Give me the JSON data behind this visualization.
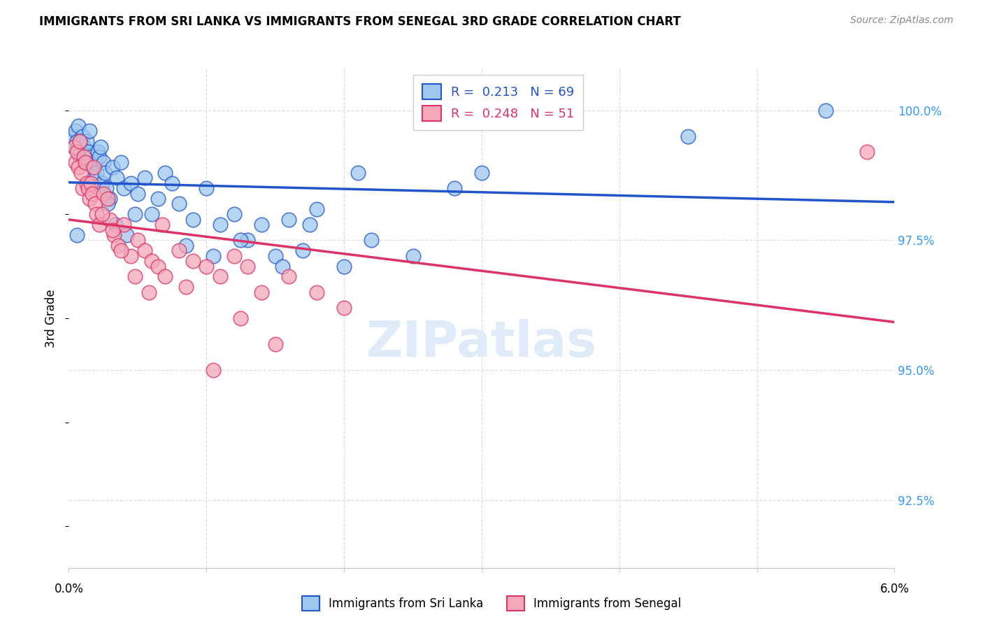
{
  "title": "IMMIGRANTS FROM SRI LANKA VS IMMIGRANTS FROM SENEGAL 3RD GRADE CORRELATION CHART",
  "source": "Source: ZipAtlas.com",
  "ylabel": "3rd Grade",
  "ylabel_ticks": [
    "92.5%",
    "95.0%",
    "97.5%",
    "100.0%"
  ],
  "ylabel_values": [
    92.5,
    95.0,
    97.5,
    100.0
  ],
  "xmin": 0.0,
  "xmax": 6.0,
  "ymin": 91.2,
  "ymax": 100.8,
  "color_sri_lanka": "#9EC8EE",
  "color_senegal": "#F4A8B8",
  "color_line_sri_lanka": "#2255CC",
  "color_line_senegal": "#DD3366",
  "sri_lanka_x": [
    0.03,
    0.04,
    0.05,
    0.06,
    0.07,
    0.08,
    0.09,
    0.1,
    0.11,
    0.12,
    0.13,
    0.14,
    0.15,
    0.16,
    0.17,
    0.18,
    0.19,
    0.2,
    0.21,
    0.22,
    0.23,
    0.24,
    0.25,
    0.26,
    0.27,
    0.3,
    0.32,
    0.35,
    0.38,
    0.4,
    0.45,
    0.5,
    0.55,
    0.6,
    0.65,
    0.7,
    0.8,
    0.9,
    1.0,
    1.1,
    1.2,
    1.3,
    1.4,
    1.5,
    1.6,
    1.7,
    1.8,
    2.0,
    2.2,
    2.5,
    2.8,
    3.0,
    0.28,
    0.34,
    0.42,
    0.48,
    0.75,
    0.85,
    1.05,
    1.25,
    1.55,
    1.75,
    2.1,
    2.6,
    3.5,
    4.5,
    5.5,
    0.06,
    0.08
  ],
  "sri_lanka_y": [
    99.5,
    99.3,
    99.6,
    99.4,
    99.7,
    99.1,
    99.2,
    99.5,
    99.3,
    99.0,
    99.4,
    99.2,
    99.6,
    99.1,
    98.9,
    98.7,
    99.0,
    98.8,
    99.2,
    99.1,
    99.3,
    98.6,
    99.0,
    98.8,
    98.5,
    98.3,
    98.9,
    98.7,
    99.0,
    98.5,
    98.6,
    98.4,
    98.7,
    98.0,
    98.3,
    98.8,
    98.2,
    97.9,
    98.5,
    97.8,
    98.0,
    97.5,
    97.8,
    97.2,
    97.9,
    97.3,
    98.1,
    97.0,
    97.5,
    97.2,
    98.5,
    98.8,
    98.2,
    97.8,
    97.6,
    98.0,
    98.6,
    97.4,
    97.2,
    97.5,
    97.0,
    97.8,
    98.8,
    99.8,
    99.9,
    99.5,
    100.0,
    97.6,
    99.4
  ],
  "senegal_x": [
    0.04,
    0.05,
    0.06,
    0.07,
    0.08,
    0.09,
    0.1,
    0.11,
    0.12,
    0.13,
    0.14,
    0.15,
    0.16,
    0.17,
    0.18,
    0.19,
    0.2,
    0.22,
    0.25,
    0.28,
    0.3,
    0.33,
    0.36,
    0.4,
    0.45,
    0.5,
    0.55,
    0.6,
    0.65,
    0.7,
    0.8,
    0.9,
    1.0,
    1.1,
    1.2,
    1.3,
    1.4,
    1.6,
    1.8,
    2.0,
    0.24,
    0.32,
    0.38,
    0.48,
    0.58,
    0.68,
    0.85,
    1.05,
    1.25,
    1.5,
    5.8
  ],
  "senegal_y": [
    99.3,
    99.0,
    99.2,
    98.9,
    99.4,
    98.8,
    98.5,
    99.1,
    99.0,
    98.6,
    98.5,
    98.3,
    98.6,
    98.4,
    98.9,
    98.2,
    98.0,
    97.8,
    98.4,
    98.3,
    97.9,
    97.6,
    97.4,
    97.8,
    97.2,
    97.5,
    97.3,
    97.1,
    97.0,
    96.8,
    97.3,
    97.1,
    97.0,
    96.8,
    97.2,
    97.0,
    96.5,
    96.8,
    96.5,
    96.2,
    98.0,
    97.7,
    97.3,
    96.8,
    96.5,
    97.8,
    96.6,
    95.0,
    96.0,
    95.5,
    99.2
  ]
}
